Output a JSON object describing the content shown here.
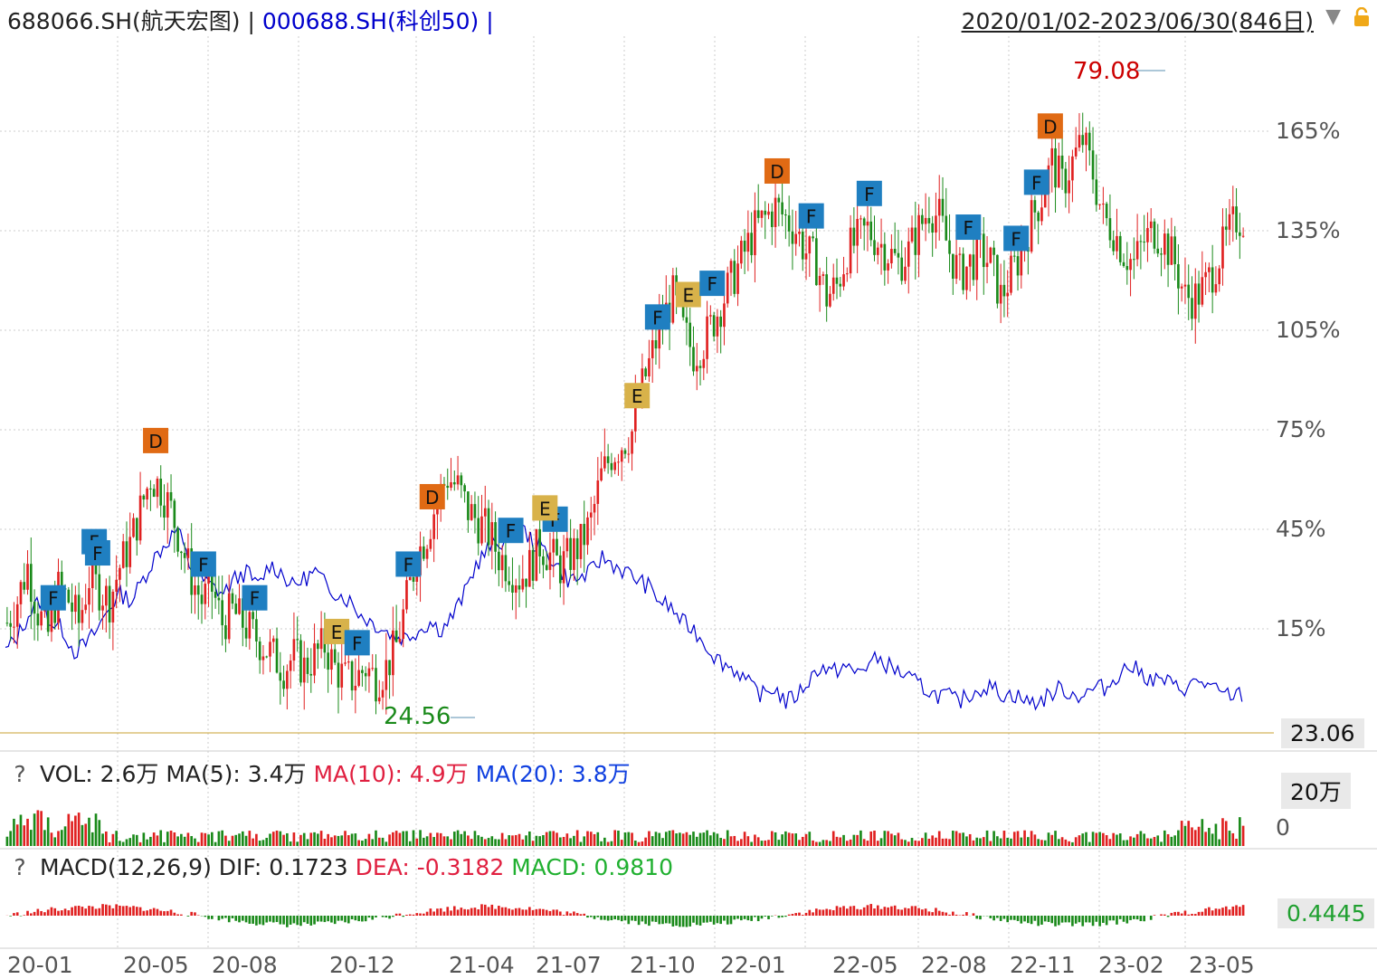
{
  "header": {
    "symbol_main": "688066.SH(航天宏图)",
    "separator": " | ",
    "symbol_compare": "000688.SH(科创50)",
    "separator2": " |",
    "date_range": "2020/01/02-2023/06/30(846日)",
    "dropdown_glyph": "▼"
  },
  "colors": {
    "up": "#e02020",
    "down": "#1a8a1a",
    "compare": "#0000cc",
    "grid": "#cccccc",
    "badge_F": "#1f7fc1",
    "badge_E": "#d8b24a",
    "badge_D": "#e06a14"
  },
  "chart_data": {
    "type": "candlestick",
    "y_pct_ticks": [
      "165%",
      "135%",
      "105%",
      "75%",
      "45%",
      "15%"
    ],
    "x_ticks": [
      "20-01",
      "20-05",
      "20-08",
      "20-12",
      "21-04",
      "21-07",
      "21-10",
      "22-01",
      "22-05",
      "22-08",
      "22-11",
      "23-02",
      "23-05"
    ],
    "high_label": "79.08",
    "low_label": "24.56",
    "last_price": "23.06",
    "series_main_close": [
      31,
      33,
      36,
      32,
      30,
      34,
      33,
      31,
      35,
      34,
      33,
      36,
      38,
      41,
      44,
      43,
      41,
      38,
      35,
      33,
      34,
      31,
      32,
      31,
      30,
      29,
      28,
      27,
      28,
      27,
      28,
      29,
      27,
      26,
      26,
      27,
      26,
      27,
      29,
      33,
      37,
      39,
      42,
      44,
      43,
      41,
      40,
      39,
      37,
      36,
      35,
      36,
      38,
      37,
      36,
      37,
      38,
      40,
      44,
      46,
      47,
      48,
      52,
      55,
      58,
      60,
      57,
      55,
      56,
      58,
      60,
      62,
      64,
      66,
      67,
      68,
      67,
      66,
      64,
      63,
      60,
      61,
      64,
      65,
      66,
      65,
      64,
      63,
      64,
      66,
      68,
      67,
      64,
      62,
      63,
      64,
      63,
      60,
      62,
      64,
      67,
      69,
      72,
      70,
      72,
      74,
      71,
      67,
      66,
      64,
      63,
      65,
      66,
      65,
      63,
      60,
      60,
      61,
      63,
      65,
      67
    ],
    "series_compare_close": [
      30,
      32,
      35,
      37,
      34,
      33,
      30,
      31,
      33,
      36,
      38,
      37,
      40,
      43,
      45,
      47,
      42,
      40,
      39,
      38,
      40,
      41,
      39,
      42,
      41,
      39,
      40,
      41,
      39,
      38,
      37,
      35,
      34,
      33,
      32,
      32,
      33,
      34,
      33,
      35,
      38,
      42,
      44,
      45,
      46,
      47,
      45,
      44,
      42,
      40,
      40,
      41,
      43,
      42,
      41,
      40,
      39,
      37,
      36,
      34,
      33,
      31,
      29,
      28,
      27,
      25,
      24,
      25,
      23,
      24,
      26,
      28,
      27,
      28,
      27,
      28,
      29,
      28,
      27,
      26,
      25,
      24,
      24,
      23,
      24,
      25,
      25,
      24,
      24,
      23,
      23,
      24,
      25,
      24,
      24,
      25,
      25,
      27,
      28,
      27,
      26,
      26,
      25,
      25,
      26,
      25,
      24,
      24
    ],
    "badges": [
      {
        "label": "F",
        "bar": 14
      },
      {
        "label": "F",
        "bar": 26
      },
      {
        "label": "F",
        "bar": 27
      },
      {
        "label": "D",
        "bar": 44
      },
      {
        "label": "F",
        "bar": 58
      },
      {
        "label": "F",
        "bar": 73
      },
      {
        "label": "E",
        "bar": 97
      },
      {
        "label": "F",
        "bar": 103
      },
      {
        "label": "F",
        "bar": 118
      },
      {
        "label": "D",
        "bar": 125
      },
      {
        "label": "F",
        "bar": 148
      },
      {
        "label": "F",
        "bar": 161
      },
      {
        "label": "E",
        "bar": 158
      },
      {
        "label": "E",
        "bar": 185
      },
      {
        "label": "F",
        "bar": 191
      },
      {
        "label": "E",
        "bar": 200
      },
      {
        "label": "F",
        "bar": 207
      },
      {
        "label": "D",
        "bar": 226
      },
      {
        "label": "F",
        "bar": 236
      },
      {
        "label": "F",
        "bar": 253
      },
      {
        "label": "F",
        "bar": 282
      },
      {
        "label": "F",
        "bar": 296
      },
      {
        "label": "F",
        "bar": 302
      },
      {
        "label": "D",
        "bar": 306
      }
    ]
  },
  "vol_panel": {
    "help": "?",
    "vol_label": "VOL: 2.6万",
    "ma5_label": "MA(5): 3.4万",
    "ma10_label": "MA(10): 4.9万",
    "ma20_label": "MA(20): 3.8万",
    "tag_top": "20万",
    "tag_zero": "0"
  },
  "macd_panel": {
    "help": "?",
    "macd_title": "MACD(12,26,9)",
    "dif_label": "DIF: 0.1723",
    "dea_label": "DEA: -0.3182",
    "macd_label": "MACD: 0.9810",
    "tag_value": "0.4445"
  }
}
